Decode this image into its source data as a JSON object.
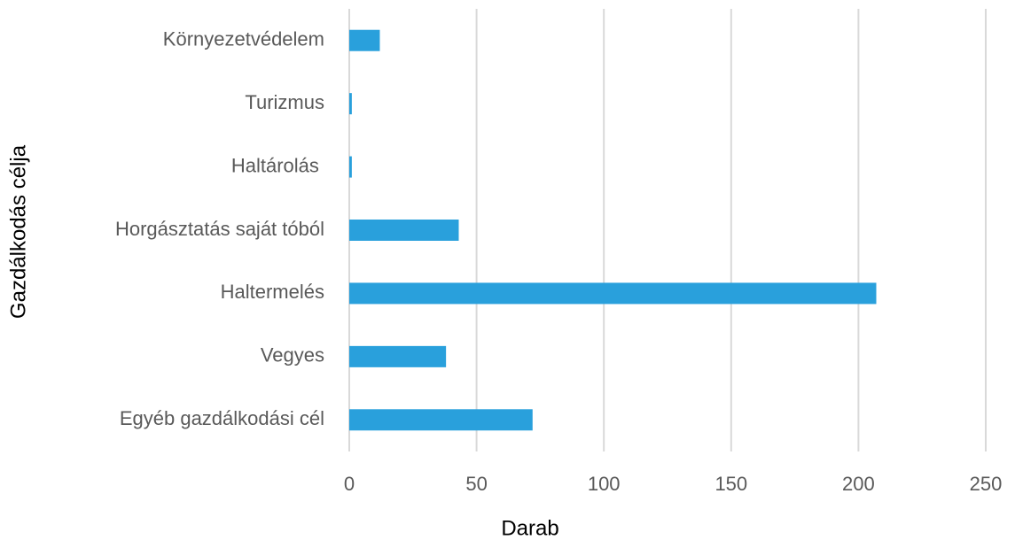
{
  "chart_data": {
    "type": "barh",
    "y_label": "Gazdálkodás célja",
    "x_label": "Darab",
    "categories": [
      "Környezetvédelem",
      "Turizmus",
      "Haltárolás ",
      "Horgásztatás saját tóból",
      "Haltermelés",
      "Vegyes",
      "Egyéb gazdálkodási cél"
    ],
    "values": [
      12,
      1,
      1,
      43,
      207,
      38,
      72
    ],
    "color": "#29a0dc",
    "xlim": [
      0,
      250
    ],
    "xticks": [
      0,
      50,
      100,
      150,
      200,
      250
    ],
    "grid": true
  }
}
